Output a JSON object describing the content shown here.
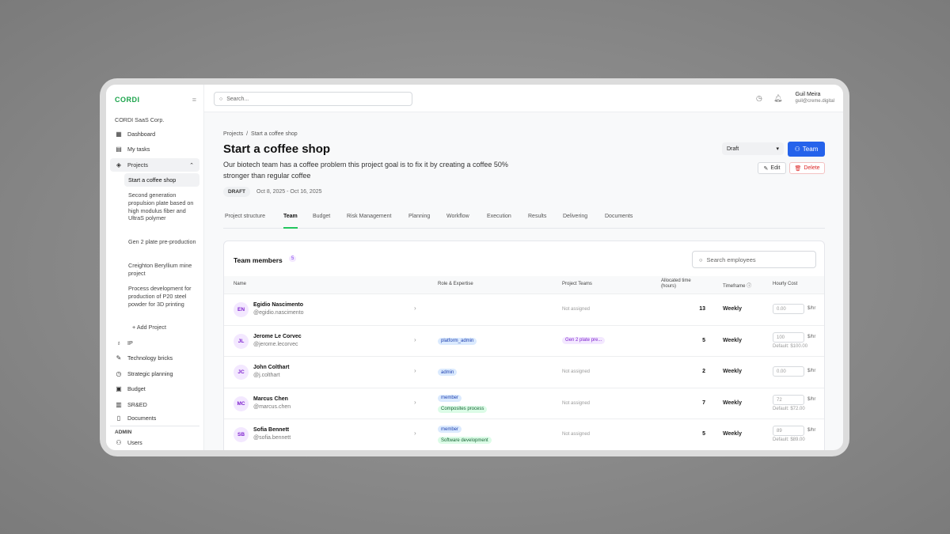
{
  "app": {
    "logo": "CORDI",
    "org": "CORDI SaaS Corp."
  },
  "sidebar": {
    "items": [
      {
        "label": "Dashboard",
        "icon": "dashboard-icon"
      },
      {
        "label": "My tasks",
        "icon": "clipboard-icon"
      },
      {
        "label": "Projects",
        "icon": "layers-icon"
      }
    ],
    "projects": [
      "Start a coffee shop",
      "Second generation propulsion plate based on high modulus fiber and UltraS polymer",
      "Gen 2 plate pre-production",
      "Creighton Beryllium mine project",
      "Process development for production of P20 steel powder for 3D printing"
    ],
    "add_project": "Add Project",
    "items2": [
      {
        "label": "IP",
        "icon": "lightbulb-icon"
      },
      {
        "label": "Technology bricks",
        "icon": "wrench-icon"
      },
      {
        "label": "Strategic planning",
        "icon": "clock-icon"
      },
      {
        "label": "Budget",
        "icon": "calculator-icon"
      },
      {
        "label": "SR&ED",
        "icon": "briefcase-icon"
      },
      {
        "label": "Documents",
        "icon": "document-icon"
      }
    ],
    "admin_label": "ADMIN",
    "admin_items": [
      {
        "label": "Users",
        "icon": "users-icon"
      }
    ]
  },
  "topbar": {
    "search_placeholder": "Search...",
    "user_name": "Guil Meira",
    "user_email": "guil@creme.digital"
  },
  "page": {
    "breadcrumb": [
      "Projects",
      "Start a coffee shop"
    ],
    "title": "Start a coffee shop",
    "description": "Our biotech team has a coffee problem this project goal is to fix it by creating a coffee 50% stronger than regular coffee",
    "status_badge": "DRAFT",
    "dates": "Oct 8, 2025 - Oct 16, 2025",
    "status_select": "Draft",
    "team_button": "Team",
    "edit_button": "Edit",
    "delete_button": "Delete",
    "tabs": [
      "Project structure",
      "Team",
      "Budget",
      "Risk Management",
      "Planning",
      "Workflow",
      "Execution",
      "Results",
      "Delivering",
      "Documents"
    ],
    "active_tab": "Team"
  },
  "team": {
    "title": "Team members",
    "count": "5",
    "search_placeholder": "Search employees",
    "columns": [
      "Name",
      "Role & Expertise",
      "Project Teams",
      "Allocated time (hours)",
      "Timeframe",
      "Hourly Cost"
    ],
    "rows": [
      {
        "initials": "EN",
        "name": "Egidio Nascimento",
        "username": "@egidio.nascimento",
        "roles": [],
        "expertise": "",
        "teams": "Not assigned",
        "allocated": "13",
        "timeframe": "Weekly",
        "cost": "0.00",
        "cost_unit": "$/hr",
        "default": ""
      },
      {
        "initials": "JL",
        "name": "Jerome Le Corvec",
        "username": "@jerome.lecorvec",
        "roles": [
          "platform_admin"
        ],
        "expertise": "",
        "teams": "Gen 2 plate pre...",
        "allocated": "5",
        "timeframe": "Weekly",
        "cost": "100",
        "cost_unit": "$/hr",
        "default": "Default: $100.00"
      },
      {
        "initials": "JC",
        "name": "John Colthart",
        "username": "@j.colthart",
        "roles": [
          "admin"
        ],
        "expertise": "",
        "teams": "Not assigned",
        "allocated": "2",
        "timeframe": "Weekly",
        "cost": "0.00",
        "cost_unit": "$/hr",
        "default": ""
      },
      {
        "initials": "MC",
        "name": "Marcus Chen",
        "username": "@marcus.chen",
        "roles": [
          "member"
        ],
        "expertise": "Composites process",
        "teams": "Not assigned",
        "allocated": "7",
        "timeframe": "Weekly",
        "cost": "72",
        "cost_unit": "$/hr",
        "default": "Default: $72.00"
      },
      {
        "initials": "SB",
        "name": "Sofia Bennett",
        "username": "@sofia.bennett",
        "roles": [
          "member"
        ],
        "expertise": "Software development",
        "teams": "Not assigned",
        "allocated": "5",
        "timeframe": "Weekly",
        "cost": "89",
        "cost_unit": "$/hr",
        "default": "Default: $89.00"
      }
    ]
  },
  "colors": {
    "brand": "#1aa34a",
    "primary": "#2563eb",
    "danger": "#dc2626",
    "active_tab": "#22c55e"
  }
}
